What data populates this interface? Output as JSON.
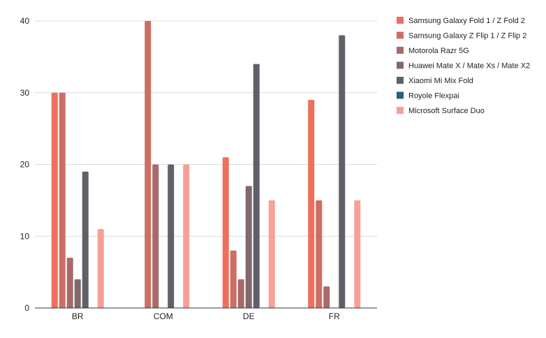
{
  "chart_data": {
    "type": "bar",
    "categories": [
      "BR",
      "COM",
      "DE",
      "FR"
    ],
    "series": [
      {
        "name": "Samsung Galaxy Fold 1 / Z Fold 2",
        "color": "#ef6f5c",
        "values": [
          30,
          0,
          21,
          29
        ]
      },
      {
        "name": "Samsung Galaxy Z Flip 1 / Z Flip 2",
        "color": "#cd6e64",
        "values": [
          30,
          40,
          8,
          15
        ]
      },
      {
        "name": "Motorola Razr 5G",
        "color": "#a86a6a",
        "values": [
          7,
          20,
          4,
          3
        ]
      },
      {
        "name": "Huawei Mate X / Mate Xs / Mate X2",
        "color": "#80686b",
        "values": [
          4,
          0,
          17,
          0
        ]
      },
      {
        "name": "Xiaomi Mi Mix Fold",
        "color": "#5f6068",
        "values": [
          19,
          20,
          34,
          38
        ]
      },
      {
        "name": "Royole Flexpai",
        "color": "#2b5e7a",
        "values": [
          0,
          0,
          0,
          0
        ]
      },
      {
        "name": "Microsoft Surface Duo",
        "color": "#f7a096",
        "values": [
          11,
          20,
          15,
          15
        ]
      }
    ],
    "ylim": [
      0,
      40
    ],
    "yticks": [
      0,
      10,
      20,
      30,
      40
    ],
    "grid": true,
    "legend_position": "right"
  }
}
